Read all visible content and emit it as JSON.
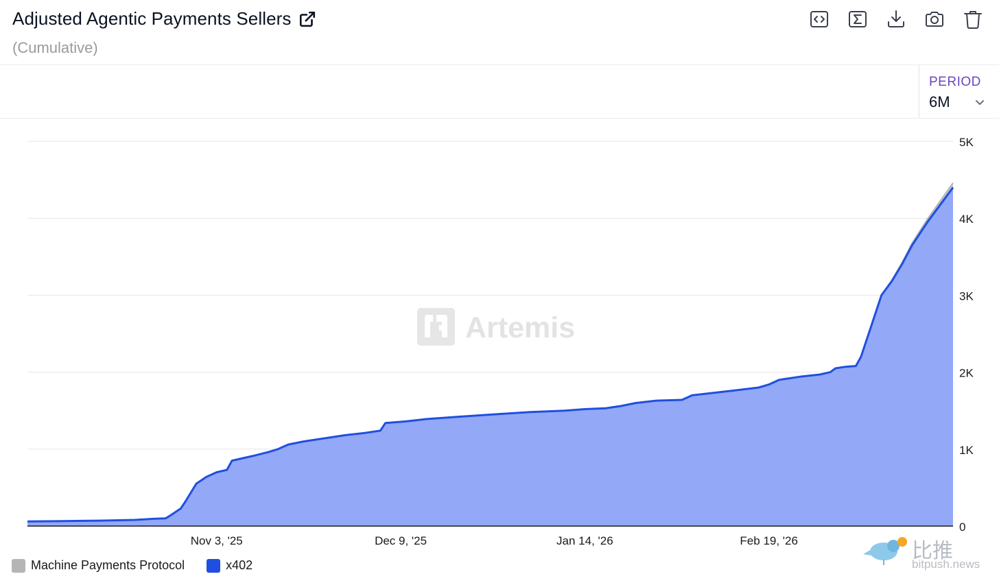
{
  "header": {
    "title": "Adjusted Agentic Payments Sellers",
    "subtitle": "(Cumulative)",
    "toolbar": [
      {
        "name": "embed-code-icon"
      },
      {
        "name": "sigma-icon"
      },
      {
        "name": "download-icon"
      },
      {
        "name": "camera-icon"
      },
      {
        "name": "trash-icon"
      }
    ]
  },
  "period": {
    "label": "PERIOD",
    "value": "6M"
  },
  "watermarks": {
    "artemis": "Artemis",
    "bitpush_cn": "比推",
    "bitpush_url": "bitpush.news"
  },
  "legend": [
    {
      "label": "Machine Payments Protocol",
      "color": "#b5b5b5"
    },
    {
      "label": "x402",
      "color": "#1f4fe0"
    }
  ],
  "chart_data": {
    "type": "area",
    "title": "Adjusted Agentic Payments Sellers",
    "subtitle": "(Cumulative)",
    "x_start": "2025-09-27",
    "x_end": "2026-03-27",
    "x_ticks": [
      {
        "date": "2025-11-03",
        "label": "Nov 3, '25"
      },
      {
        "date": "2025-12-09",
        "label": "Dec 9, '25"
      },
      {
        "date": "2026-01-14",
        "label": "Jan 14, '26"
      },
      {
        "date": "2026-02-19",
        "label": "Feb 19, '26"
      }
    ],
    "y_ticks": [
      {
        "value": 0,
        "label": "0"
      },
      {
        "value": 1000,
        "label": "1K"
      },
      {
        "value": 2000,
        "label": "2K"
      },
      {
        "value": 3000,
        "label": "3K"
      },
      {
        "value": 4000,
        "label": "4K"
      },
      {
        "value": 5000,
        "label": "5K"
      }
    ],
    "ylim": [
      0,
      5000
    ],
    "stacked": true,
    "grid": true,
    "legend_position": "bottom-left",
    "series": [
      {
        "name": "x402",
        "color": "#1f4fe0",
        "fill": "#93a8f7",
        "points": [
          [
            "2025-09-27",
            60
          ],
          [
            "2025-10-04",
            65
          ],
          [
            "2025-10-11",
            70
          ],
          [
            "2025-10-18",
            80
          ],
          [
            "2025-10-22",
            95
          ],
          [
            "2025-10-24",
            100
          ],
          [
            "2025-10-25",
            140
          ],
          [
            "2025-10-27",
            230
          ],
          [
            "2025-10-28",
            330
          ],
          [
            "2025-10-30",
            550
          ],
          [
            "2025-11-01",
            640
          ],
          [
            "2025-11-03",
            700
          ],
          [
            "2025-11-05",
            730
          ],
          [
            "2025-11-06",
            850
          ],
          [
            "2025-11-10",
            910
          ],
          [
            "2025-11-13",
            960
          ],
          [
            "2025-11-15",
            1000
          ],
          [
            "2025-11-17",
            1060
          ],
          [
            "2025-11-20",
            1100
          ],
          [
            "2025-11-24",
            1140
          ],
          [
            "2025-11-28",
            1180
          ],
          [
            "2025-12-02",
            1210
          ],
          [
            "2025-12-05",
            1240
          ],
          [
            "2025-12-06",
            1340
          ],
          [
            "2025-12-10",
            1360
          ],
          [
            "2025-12-14",
            1390
          ],
          [
            "2025-12-20",
            1420
          ],
          [
            "2025-12-27",
            1450
          ],
          [
            "2026-01-03",
            1480
          ],
          [
            "2026-01-10",
            1500
          ],
          [
            "2026-01-14",
            1520
          ],
          [
            "2026-01-18",
            1530
          ],
          [
            "2026-01-21",
            1560
          ],
          [
            "2026-01-24",
            1600
          ],
          [
            "2026-01-28",
            1630
          ],
          [
            "2026-02-02",
            1640
          ],
          [
            "2026-02-04",
            1700
          ],
          [
            "2026-02-08",
            1730
          ],
          [
            "2026-02-12",
            1760
          ],
          [
            "2026-02-17",
            1800
          ],
          [
            "2026-02-19",
            1840
          ],
          [
            "2026-02-21",
            1900
          ],
          [
            "2026-02-25",
            1940
          ],
          [
            "2026-03-01",
            1970
          ],
          [
            "2026-03-03",
            2000
          ],
          [
            "2026-03-04",
            2050
          ],
          [
            "2026-03-06",
            2070
          ],
          [
            "2026-03-08",
            2080
          ],
          [
            "2026-03-09",
            2200
          ],
          [
            "2026-03-11",
            2600
          ],
          [
            "2026-03-13",
            3000
          ],
          [
            "2026-03-15",
            3180
          ],
          [
            "2026-03-17",
            3400
          ],
          [
            "2026-03-19",
            3650
          ],
          [
            "2026-03-22",
            3950
          ],
          [
            "2026-03-27",
            4400
          ]
        ]
      },
      {
        "name": "Machine Payments Protocol",
        "color": "#b5b5b5",
        "fill": "#c9c9c9",
        "points": [
          [
            "2025-09-27",
            0
          ],
          [
            "2026-03-12",
            0
          ],
          [
            "2026-03-17",
            20
          ],
          [
            "2026-03-22",
            40
          ],
          [
            "2026-03-27",
            60
          ]
        ]
      }
    ]
  }
}
